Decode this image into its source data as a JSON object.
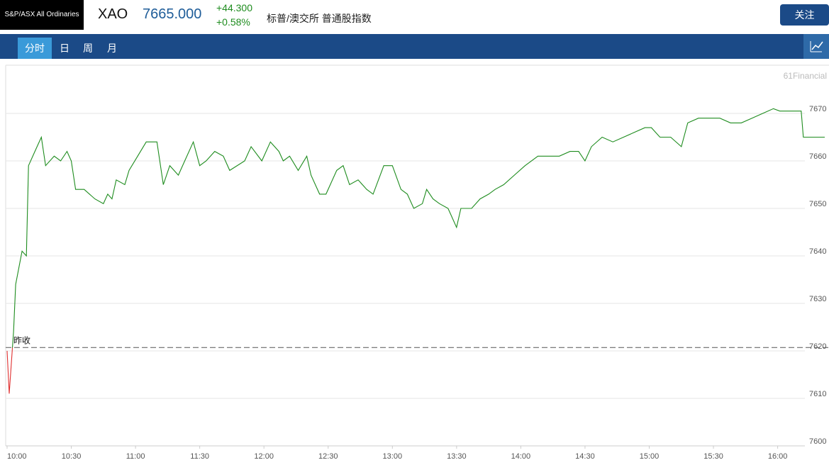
{
  "header": {
    "logo": "S&P/ASX All Ordinaries",
    "symbol": "XAO",
    "price": "7665.000",
    "change": "+44.300",
    "change_pct": "+0.58%",
    "name": "标普/澳交所 普通股指数",
    "follow_button": "关注"
  },
  "tabs": [
    "分时",
    "日",
    "周",
    "月"
  ],
  "chart_data": {
    "type": "line",
    "watermark": "61Financial",
    "color": "#1e8c1e",
    "below_color": "#e03030",
    "prev_close": {
      "label": "昨收",
      "value": 7620.7
    },
    "x": [
      "10:00",
      "10:01",
      "10:03",
      "10:04",
      "10:07",
      "10:09",
      "10:10",
      "10:13",
      "10:16",
      "10:18",
      "10:22",
      "10:25",
      "10:28",
      "10:30",
      "10:32",
      "10:36",
      "10:41",
      "10:45",
      "10:47",
      "10:49",
      "10:51",
      "10:55",
      "10:57",
      "11:01",
      "11:05",
      "11:10",
      "11:13",
      "11:16",
      "11:20",
      "11:23",
      "11:27",
      "11:30",
      "11:33",
      "11:37",
      "11:41",
      "11:44",
      "11:51",
      "11:54",
      "11:59",
      "12:03",
      "12:07",
      "12:09",
      "12:12",
      "12:16",
      "12:20",
      "12:22",
      "12:26",
      "12:29",
      "12:34",
      "12:37",
      "12:40",
      "12:44",
      "12:48",
      "12:51",
      "12:56",
      "13:00",
      "13:04",
      "13:07",
      "13:10",
      "13:14",
      "13:16",
      "13:19",
      "13:22",
      "13:26",
      "13:30",
      "13:32",
      "13:37",
      "13:41",
      "13:45",
      "13:48",
      "13:52",
      "13:57",
      "14:02",
      "14:08",
      "14:13",
      "14:18",
      "14:23",
      "14:27",
      "14:30",
      "14:33",
      "14:38",
      "14:43",
      "14:48",
      "14:53",
      "14:58",
      "15:01",
      "15:05",
      "15:10",
      "15:15",
      "15:18",
      "15:23",
      "15:28",
      "15:33",
      "15:38",
      "15:43",
      "15:48",
      "15:53",
      "15:58",
      "16:01",
      "16:11",
      "16:12",
      "16:22"
    ],
    "values": [
      7620,
      7611,
      7624,
      7634,
      7641,
      7640,
      7659,
      7662,
      7665,
      7659,
      7661,
      7660,
      7662,
      7660,
      7654,
      7654,
      7652,
      7651,
      7653,
      7652,
      7656,
      7655,
      7658,
      7661,
      7664,
      7664,
      7655,
      7659,
      7657,
      7660,
      7664,
      7659,
      7660,
      7662,
      7661,
      7658,
      7660,
      7663,
      7660,
      7664,
      7662,
      7660,
      7661,
      7658,
      7661,
      7657,
      7653,
      7653,
      7658,
      7659,
      7655,
      7656,
      7654,
      7653,
      7659,
      7659,
      7654,
      7653,
      7650,
      7651,
      7654,
      7652,
      7651,
      7650,
      7646,
      7650,
      7650,
      7652,
      7653,
      7654,
      7655,
      7657,
      7659,
      7661,
      7661,
      7661,
      7662,
      7662,
      7660,
      7663,
      7665,
      7664,
      7665,
      7666,
      7667,
      7667,
      7665,
      7665,
      7663,
      7668,
      7669,
      7669,
      7669,
      7668,
      7668,
      7669,
      7670,
      7671,
      7670.5,
      7670.5,
      7665,
      7665
    ],
    "xlim": [
      "10:00",
      "16:22"
    ],
    "xticks": [
      "10:00",
      "10:30",
      "11:00",
      "11:30",
      "12:00",
      "12:30",
      "13:00",
      "13:30",
      "14:00",
      "14:30",
      "15:00",
      "15:30",
      "16:00"
    ],
    "ylim": [
      7600,
      7680
    ],
    "yticks": [
      7600,
      7610,
      7620,
      7630,
      7640,
      7650,
      7660,
      7670
    ],
    "grid": true
  }
}
